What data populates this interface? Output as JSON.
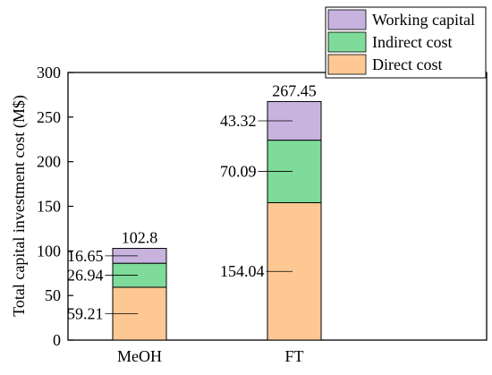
{
  "chart_data": {
    "type": "bar",
    "stacked": true,
    "categories": [
      "MeOH",
      "FT"
    ],
    "series": [
      {
        "name": "Direct cost",
        "values": [
          59.21,
          154.04
        ],
        "color": "#FDC893"
      },
      {
        "name": "Indirect cost",
        "values": [
          26.94,
          70.09
        ],
        "color": "#7FDB9A"
      },
      {
        "name": "Working capital",
        "values": [
          16.65,
          43.32
        ],
        "color": "#C8B3DF"
      }
    ],
    "totals": [
      102.8,
      267.45
    ],
    "total_labels": [
      "102.8",
      "267.45"
    ],
    "segment_labels": [
      [
        "59.21",
        "154.04"
      ],
      [
        "26.94",
        "70.09"
      ],
      [
        "16.65",
        "43.32"
      ]
    ],
    "title": "",
    "xlabel": "",
    "ylabel": "Total capital investment cost (M$)",
    "ylim": [
      0,
      300
    ],
    "yticks": [
      0,
      50,
      100,
      150,
      200,
      250,
      300
    ],
    "ytick_labels": [
      "0",
      "50",
      "100",
      "150",
      "200",
      "250",
      "300"
    ],
    "grid": false,
    "legend": {
      "position": "top-right",
      "order": [
        "Working capital",
        "Indirect cost",
        "Direct cost"
      ]
    },
    "frame_color": "#000000"
  }
}
